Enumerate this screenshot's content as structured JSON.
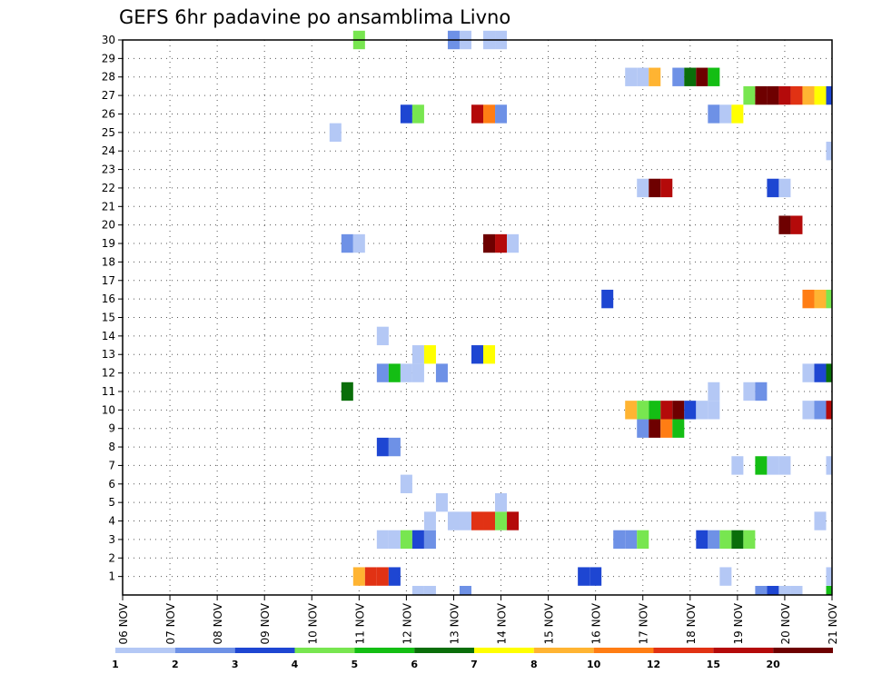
{
  "chart_data": {
    "type": "heatmap",
    "title": "GEFS 6hr padavine po ansamblima Livno",
    "xlabel": "",
    "ylabel": "",
    "y_ticks": [
      "1",
      "2",
      "3",
      "4",
      "5",
      "6",
      "7",
      "8",
      "9",
      "10",
      "11",
      "12",
      "13",
      "14",
      "15",
      "16",
      "17",
      "18",
      "19",
      "20",
      "21",
      "22",
      "23",
      "24",
      "25",
      "26",
      "27",
      "28",
      "29",
      "30"
    ],
    "x_ticks": [
      "06 NOV",
      "07 NOV",
      "08 NOV",
      "09 NOV",
      "10 NOV",
      "11 NOV",
      "12 NOV",
      "13 NOV",
      "14 NOV",
      "15 NOV",
      "16 NOV",
      "17 NOV",
      "18 NOV",
      "19 NOV",
      "20 NOV",
      "21 NOV"
    ],
    "x_range_days": [
      0,
      15
    ],
    "y_range": [
      0,
      30
    ],
    "grid": true,
    "colorbar": {
      "labels": [
        "1",
        "2",
        "3",
        "4",
        "5",
        "6",
        "7",
        "8",
        "10",
        "12",
        "15",
        "20"
      ],
      "colors": [
        "#b4c8f5",
        "#6e91e6",
        "#1e46d2",
        "#78e650",
        "#14be14",
        "#0a6e0a",
        "#ffff00",
        "#ffb432",
        "#ff7d14",
        "#e13214",
        "#b40a0a",
        "#6e0000"
      ]
    },
    "cells": [
      {
        "m": 1,
        "t": [
          [
            5.0,
            7
          ],
          [
            5.25,
            9
          ],
          [
            5.5,
            9
          ],
          [
            5.75,
            2
          ],
          [
            9.75,
            2
          ],
          [
            10.0,
            2
          ],
          [
            12.75,
            0
          ],
          [
            15.0,
            0
          ]
        ]
      },
      {
        "m": 3,
        "t": [
          [
            5.5,
            0
          ],
          [
            5.75,
            0
          ],
          [
            6.0,
            3
          ],
          [
            6.25,
            2
          ],
          [
            6.5,
            1
          ],
          [
            10.5,
            1
          ],
          [
            10.75,
            1
          ],
          [
            11.0,
            3
          ],
          [
            12.25,
            2
          ],
          [
            12.5,
            1
          ],
          [
            12.75,
            3
          ],
          [
            13.0,
            5
          ],
          [
            13.25,
            3
          ]
        ]
      },
      {
        "m": 4,
        "t": [
          [
            6.5,
            0
          ],
          [
            7.0,
            0
          ],
          [
            7.25,
            0
          ],
          [
            7.5,
            9
          ],
          [
            7.75,
            9
          ],
          [
            8.0,
            3
          ],
          [
            8.25,
            10
          ],
          [
            14.75,
            0
          ]
        ]
      },
      {
        "m": 5,
        "t": [
          [
            6.75,
            0
          ],
          [
            8.0,
            0
          ]
        ]
      },
      {
        "m": 6,
        "t": [
          [
            6.0,
            0
          ]
        ]
      },
      {
        "m": 7,
        "t": [
          [
            13.0,
            0
          ],
          [
            13.5,
            4
          ],
          [
            13.75,
            0
          ],
          [
            14.0,
            0
          ],
          [
            15.0,
            0
          ]
        ]
      },
      {
        "m": 8,
        "t": [
          [
            5.5,
            2
          ],
          [
            5.75,
            1
          ]
        ]
      },
      {
        "m": 9,
        "t": [
          [
            11.0,
            1
          ],
          [
            11.25,
            11
          ],
          [
            11.5,
            8
          ],
          [
            11.75,
            4
          ]
        ]
      },
      {
        "m": 10,
        "t": [
          [
            10.75,
            7
          ],
          [
            11.0,
            3
          ],
          [
            11.25,
            4
          ],
          [
            11.5,
            10
          ],
          [
            11.75,
            11
          ],
          [
            12.0,
            2
          ],
          [
            12.25,
            0
          ],
          [
            12.5,
            0
          ],
          [
            14.5,
            0
          ],
          [
            14.75,
            1
          ],
          [
            15.0,
            10
          ]
        ]
      },
      {
        "m": 11,
        "t": [
          [
            4.75,
            5
          ],
          [
            12.5,
            0
          ],
          [
            13.25,
            0
          ],
          [
            13.5,
            1
          ]
        ]
      },
      {
        "m": 12,
        "t": [
          [
            5.5,
            1
          ],
          [
            5.75,
            4
          ],
          [
            6.0,
            0
          ],
          [
            6.25,
            0
          ],
          [
            6.75,
            1
          ],
          [
            14.5,
            0
          ],
          [
            14.75,
            2
          ],
          [
            15.0,
            5
          ]
        ]
      },
      {
        "m": 13,
        "t": [
          [
            6.25,
            0
          ],
          [
            6.5,
            6
          ],
          [
            7.5,
            2
          ],
          [
            7.75,
            6
          ]
        ]
      },
      {
        "m": 14,
        "t": [
          [
            5.5,
            0
          ]
        ]
      },
      {
        "m": 16,
        "t": [
          [
            10.25,
            2
          ],
          [
            14.5,
            8
          ],
          [
            14.75,
            7
          ],
          [
            15.0,
            3
          ]
        ]
      },
      {
        "m": 19,
        "t": [
          [
            4.75,
            1
          ],
          [
            5.0,
            0
          ],
          [
            7.75,
            11
          ],
          [
            8.0,
            10
          ],
          [
            8.25,
            0
          ]
        ]
      },
      {
        "m": 20,
        "t": [
          [
            14.0,
            11
          ],
          [
            14.25,
            10
          ]
        ]
      },
      {
        "m": 22,
        "t": [
          [
            11.0,
            0
          ],
          [
            11.25,
            11
          ],
          [
            11.5,
            10
          ],
          [
            13.75,
            2
          ],
          [
            14.0,
            0
          ]
        ]
      },
      {
        "m": 24,
        "t": [
          [
            15.0,
            0
          ]
        ]
      },
      {
        "m": 25,
        "t": [
          [
            4.5,
            0
          ]
        ]
      },
      {
        "m": 26,
        "t": [
          [
            6.0,
            2
          ],
          [
            6.25,
            3
          ],
          [
            7.5,
            10
          ],
          [
            7.75,
            8
          ],
          [
            8.0,
            1
          ],
          [
            12.5,
            1
          ],
          [
            12.75,
            0
          ],
          [
            13.0,
            6
          ]
        ]
      },
      {
        "m": 27,
        "t": [
          [
            13.25,
            3
          ],
          [
            13.5,
            11
          ],
          [
            13.75,
            11
          ],
          [
            14.0,
            10
          ],
          [
            14.25,
            9
          ],
          [
            14.5,
            7
          ],
          [
            14.75,
            6
          ],
          [
            15.0,
            2
          ]
        ]
      },
      {
        "m": 28,
        "t": [
          [
            10.75,
            0
          ],
          [
            11.0,
            0
          ],
          [
            11.25,
            7
          ],
          [
            11.75,
            1
          ],
          [
            12.0,
            5
          ],
          [
            12.25,
            11
          ],
          [
            12.5,
            4
          ]
        ]
      },
      {
        "m": 30,
        "t": [
          [
            5.0,
            3
          ],
          [
            7.0,
            1
          ],
          [
            7.25,
            0
          ],
          [
            7.75,
            0
          ],
          [
            8.0,
            0
          ]
        ]
      },
      {
        "m": 0,
        "t": [
          [
            6.25,
            0
          ],
          [
            6.5,
            0
          ],
          [
            7.25,
            1
          ],
          [
            13.5,
            1
          ],
          [
            13.75,
            2
          ],
          [
            14.0,
            0
          ],
          [
            14.25,
            0
          ],
          [
            15.0,
            4
          ]
        ]
      }
    ]
  }
}
